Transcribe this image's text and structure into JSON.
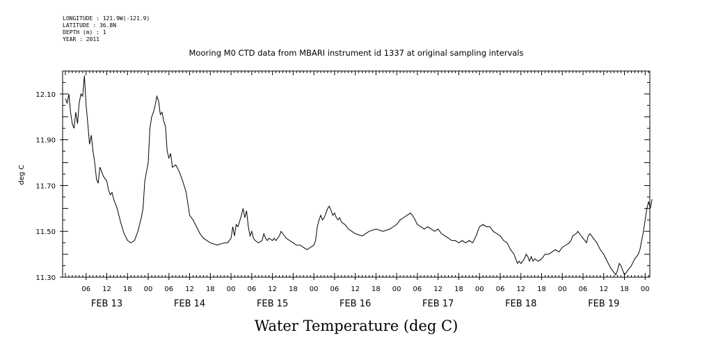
{
  "header": {
    "longitude": "LONGITUDE : 121.9W(-121.9)",
    "latitude": "LATITUDE : 36.8N",
    "depth": "DEPTH (m) : 1",
    "year": "YEAR : 2011"
  },
  "chart_data": {
    "type": "line",
    "title": "Mooring M0 CTD data from MBARI instrument id 1337 at original sampling intervals",
    "xlabel": "Water Temperature (deg C)",
    "ylabel": "deg C",
    "ylim": [
      11.3,
      12.2
    ],
    "xlim_hours": [
      0,
      170
    ],
    "y_ticks": [
      11.3,
      11.5,
      11.7,
      11.9,
      12.1
    ],
    "y_tick_labels": [
      "11.30",
      "11.50",
      "11.70",
      "11.90",
      "12.10"
    ],
    "x_hour_ticks": [
      {
        "hour": 6,
        "label": "06"
      },
      {
        "hour": 12,
        "label": "12"
      },
      {
        "hour": 18,
        "label": "18"
      },
      {
        "hour": 24,
        "label": "00"
      },
      {
        "hour": 30,
        "label": "06"
      },
      {
        "hour": 36,
        "label": "12"
      },
      {
        "hour": 42,
        "label": "18"
      },
      {
        "hour": 48,
        "label": "00"
      },
      {
        "hour": 54,
        "label": "06"
      },
      {
        "hour": 60,
        "label": "12"
      },
      {
        "hour": 66,
        "label": "18"
      },
      {
        "hour": 72,
        "label": "00"
      },
      {
        "hour": 78,
        "label": "06"
      },
      {
        "hour": 84,
        "label": "12"
      },
      {
        "hour": 90,
        "label": "18"
      },
      {
        "hour": 96,
        "label": "00"
      },
      {
        "hour": 102,
        "label": "06"
      },
      {
        "hour": 108,
        "label": "12"
      },
      {
        "hour": 114,
        "label": "18"
      },
      {
        "hour": 120,
        "label": "00"
      },
      {
        "hour": 126,
        "label": "06"
      },
      {
        "hour": 132,
        "label": "12"
      },
      {
        "hour": 138,
        "label": "18"
      },
      {
        "hour": 144,
        "label": "00"
      },
      {
        "hour": 150,
        "label": "06"
      },
      {
        "hour": 156,
        "label": "12"
      },
      {
        "hour": 162,
        "label": "18"
      },
      {
        "hour": 168,
        "label": "00"
      }
    ],
    "x_day_labels": [
      {
        "hour": 12,
        "label": "FEB 13"
      },
      {
        "hour": 36,
        "label": "FEB 14"
      },
      {
        "hour": 60,
        "label": "FEB 15"
      },
      {
        "hour": 84,
        "label": "FEB 16"
      },
      {
        "hour": 108,
        "label": "FEB 17"
      },
      {
        "hour": 132,
        "label": "FEB 18"
      },
      {
        "hour": 156,
        "label": "FEB 19"
      }
    ],
    "series": [
      {
        "name": "Water Temperature",
        "points": [
          [
            0.0,
            12.08
          ],
          [
            0.5,
            12.06
          ],
          [
            1.0,
            12.1
          ],
          [
            1.5,
            12.02
          ],
          [
            2.0,
            11.97
          ],
          [
            2.5,
            11.95
          ],
          [
            3.0,
            12.02
          ],
          [
            3.5,
            11.97
          ],
          [
            4.0,
            12.06
          ],
          [
            4.5,
            12.1
          ],
          [
            5.0,
            12.09
          ],
          [
            5.5,
            12.18
          ],
          [
            6.0,
            12.05
          ],
          [
            6.5,
            11.97
          ],
          [
            7.0,
            11.88
          ],
          [
            7.5,
            11.92
          ],
          [
            8.0,
            11.85
          ],
          [
            8.5,
            11.8
          ],
          [
            9.0,
            11.73
          ],
          [
            9.5,
            11.71
          ],
          [
            10.0,
            11.78
          ],
          [
            10.5,
            11.76
          ],
          [
            11.0,
            11.74
          ],
          [
            12.0,
            11.72
          ],
          [
            12.5,
            11.68
          ],
          [
            13.0,
            11.66
          ],
          [
            13.5,
            11.67
          ],
          [
            14.0,
            11.64
          ],
          [
            15.0,
            11.6
          ],
          [
            16.0,
            11.54
          ],
          [
            17.0,
            11.49
          ],
          [
            18.0,
            11.46
          ],
          [
            19.0,
            11.45
          ],
          [
            20.0,
            11.46
          ],
          [
            21.0,
            11.5
          ],
          [
            22.0,
            11.56
          ],
          [
            22.5,
            11.6
          ],
          [
            23.0,
            11.72
          ],
          [
            24.0,
            11.8
          ],
          [
            24.5,
            11.95
          ],
          [
            25.0,
            12.0
          ],
          [
            25.5,
            12.02
          ],
          [
            26.0,
            12.05
          ],
          [
            26.5,
            12.09
          ],
          [
            27.0,
            12.07
          ],
          [
            27.5,
            12.01
          ],
          [
            28.0,
            12.02
          ],
          [
            28.5,
            11.98
          ],
          [
            29.0,
            11.96
          ],
          [
            29.5,
            11.85
          ],
          [
            30.0,
            11.82
          ],
          [
            30.5,
            11.84
          ],
          [
            31.0,
            11.78
          ],
          [
            32.0,
            11.79
          ],
          [
            33.0,
            11.76
          ],
          [
            34.0,
            11.72
          ],
          [
            35.0,
            11.67
          ],
          [
            36.0,
            11.57
          ],
          [
            37.0,
            11.55
          ],
          [
            38.0,
            11.52
          ],
          [
            39.0,
            11.49
          ],
          [
            40.0,
            11.47
          ],
          [
            42.0,
            11.45
          ],
          [
            44.0,
            11.44
          ],
          [
            46.0,
            11.45
          ],
          [
            47.0,
            11.45
          ],
          [
            48.0,
            11.47
          ],
          [
            48.5,
            11.52
          ],
          [
            49.0,
            11.48
          ],
          [
            49.5,
            11.53
          ],
          [
            50.0,
            11.52
          ],
          [
            51.0,
            11.57
          ],
          [
            51.5,
            11.6
          ],
          [
            52.0,
            11.56
          ],
          [
            52.5,
            11.59
          ],
          [
            53.0,
            11.52
          ],
          [
            53.5,
            11.48
          ],
          [
            54.0,
            11.5
          ],
          [
            54.5,
            11.47
          ],
          [
            55.0,
            11.46
          ],
          [
            56.0,
            11.45
          ],
          [
            57.0,
            11.46
          ],
          [
            57.5,
            11.49
          ],
          [
            58.0,
            11.47
          ],
          [
            58.5,
            11.46
          ],
          [
            59.0,
            11.47
          ],
          [
            60.0,
            11.46
          ],
          [
            60.5,
            11.47
          ],
          [
            61.0,
            11.46
          ],
          [
            62.0,
            11.48
          ],
          [
            62.5,
            11.5
          ],
          [
            63.0,
            11.49
          ],
          [
            64.0,
            11.47
          ],
          [
            65.0,
            11.46
          ],
          [
            66.0,
            11.45
          ],
          [
            67.0,
            11.44
          ],
          [
            68.0,
            11.44
          ],
          [
            69.0,
            11.43
          ],
          [
            70.0,
            11.42
          ],
          [
            71.0,
            11.43
          ],
          [
            72.0,
            11.44
          ],
          [
            72.5,
            11.46
          ],
          [
            73.0,
            11.52
          ],
          [
            73.5,
            11.55
          ],
          [
            74.0,
            11.57
          ],
          [
            74.5,
            11.55
          ],
          [
            75.0,
            11.56
          ],
          [
            75.5,
            11.58
          ],
          [
            76.0,
            11.6
          ],
          [
            76.5,
            11.61
          ],
          [
            77.0,
            11.59
          ],
          [
            77.5,
            11.57
          ],
          [
            78.0,
            11.58
          ],
          [
            78.5,
            11.56
          ],
          [
            79.0,
            11.55
          ],
          [
            79.5,
            11.56
          ],
          [
            80.0,
            11.54
          ],
          [
            81.0,
            11.53
          ],
          [
            82.0,
            11.51
          ],
          [
            83.0,
            11.5
          ],
          [
            84.0,
            11.49
          ],
          [
            86.0,
            11.48
          ],
          [
            88.0,
            11.5
          ],
          [
            90.0,
            11.51
          ],
          [
            92.0,
            11.5
          ],
          [
            94.0,
            11.51
          ],
          [
            96.0,
            11.53
          ],
          [
            97.0,
            11.55
          ],
          [
            98.0,
            11.56
          ],
          [
            99.0,
            11.57
          ],
          [
            100.0,
            11.58
          ],
          [
            100.5,
            11.57
          ],
          [
            101.0,
            11.56
          ],
          [
            102.0,
            11.53
          ],
          [
            103.0,
            11.52
          ],
          [
            104.0,
            11.51
          ],
          [
            105.0,
            11.52
          ],
          [
            106.0,
            11.51
          ],
          [
            107.0,
            11.5
          ],
          [
            108.0,
            11.51
          ],
          [
            109.0,
            11.49
          ],
          [
            110.0,
            11.48
          ],
          [
            111.0,
            11.47
          ],
          [
            112.0,
            11.46
          ],
          [
            113.0,
            11.46
          ],
          [
            114.0,
            11.45
          ],
          [
            115.0,
            11.46
          ],
          [
            116.0,
            11.45
          ],
          [
            117.0,
            11.46
          ],
          [
            118.0,
            11.45
          ],
          [
            119.0,
            11.48
          ],
          [
            120.0,
            11.52
          ],
          [
            121.0,
            11.53
          ],
          [
            122.0,
            11.52
          ],
          [
            123.0,
            11.52
          ],
          [
            124.0,
            11.5
          ],
          [
            125.0,
            11.49
          ],
          [
            126.0,
            11.48
          ],
          [
            127.0,
            11.46
          ],
          [
            128.0,
            11.45
          ],
          [
            129.0,
            11.42
          ],
          [
            130.0,
            11.4
          ],
          [
            130.5,
            11.38
          ],
          [
            131.0,
            11.36
          ],
          [
            131.5,
            11.37
          ],
          [
            132.0,
            11.36
          ],
          [
            133.0,
            11.38
          ],
          [
            133.5,
            11.4
          ],
          [
            134.0,
            11.39
          ],
          [
            134.5,
            11.37
          ],
          [
            135.0,
            11.39
          ],
          [
            135.5,
            11.37
          ],
          [
            136.0,
            11.38
          ],
          [
            137.0,
            11.37
          ],
          [
            138.0,
            11.38
          ],
          [
            139.0,
            11.4
          ],
          [
            140.0,
            11.4
          ],
          [
            141.0,
            11.41
          ],
          [
            142.0,
            11.42
          ],
          [
            143.0,
            11.41
          ],
          [
            144.0,
            11.43
          ],
          [
            145.0,
            11.44
          ],
          [
            146.0,
            11.45
          ],
          [
            146.5,
            11.46
          ],
          [
            147.0,
            11.48
          ],
          [
            148.0,
            11.49
          ],
          [
            148.5,
            11.5
          ],
          [
            149.0,
            11.49
          ],
          [
            150.0,
            11.47
          ],
          [
            151.0,
            11.45
          ],
          [
            151.5,
            11.48
          ],
          [
            152.0,
            11.49
          ],
          [
            153.0,
            11.47
          ],
          [
            154.0,
            11.45
          ],
          [
            155.0,
            11.42
          ],
          [
            156.0,
            11.4
          ],
          [
            157.0,
            11.37
          ],
          [
            158.0,
            11.34
          ],
          [
            159.0,
            11.32
          ],
          [
            159.5,
            11.31
          ],
          [
            160.0,
            11.33
          ],
          [
            160.5,
            11.36
          ],
          [
            161.0,
            11.35
          ],
          [
            161.5,
            11.33
          ],
          [
            162.0,
            11.31
          ],
          [
            163.0,
            11.33
          ],
          [
            164.0,
            11.35
          ],
          [
            165.0,
            11.38
          ],
          [
            166.0,
            11.4
          ],
          [
            166.5,
            11.42
          ],
          [
            167.0,
            11.46
          ],
          [
            167.5,
            11.5
          ],
          [
            168.0,
            11.55
          ],
          [
            168.5,
            11.6
          ],
          [
            169.0,
            11.63
          ],
          [
            169.5,
            11.6
          ],
          [
            170.0,
            11.64
          ]
        ]
      }
    ]
  }
}
